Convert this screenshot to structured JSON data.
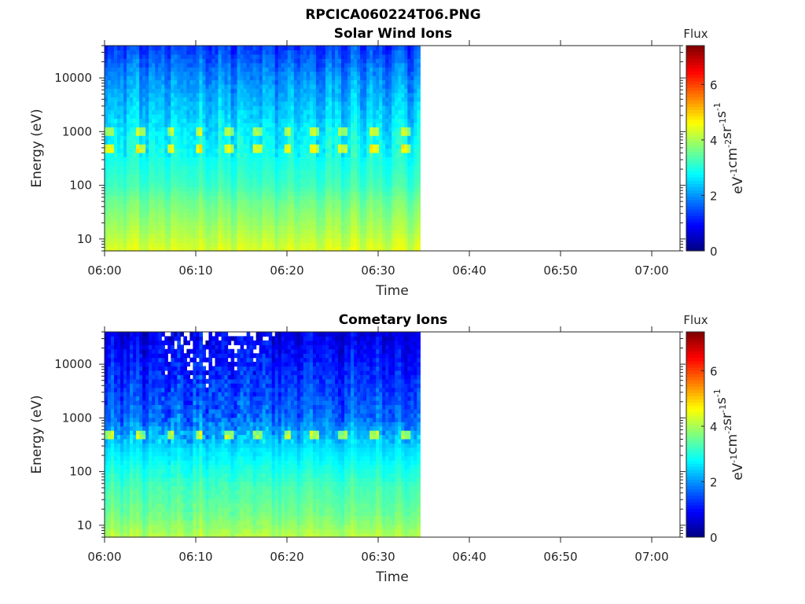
{
  "chart_data": {
    "type": "heatmap",
    "title": "RPCICA060224T06.PNG",
    "colormap": "jet",
    "colorbar": {
      "label_top": "Flux",
      "unit_label": "eV-1cm-2sr-1s-1",
      "range": [
        0,
        7.4
      ],
      "ticks": [
        0,
        2,
        4,
        6
      ]
    },
    "x_axis": {
      "label": "Time",
      "range_minutes": [
        0,
        63.1
      ],
      "tick_minutes": [
        0,
        10,
        20,
        30,
        40,
        50,
        60
      ],
      "tick_labels": [
        "06:00",
        "06:10",
        "06:20",
        "06:30",
        "06:40",
        "06:50",
        "07:00"
      ],
      "data_end_minutes": 34.6,
      "time_bins": 100
    },
    "y_axis": {
      "label": "Energy (eV)",
      "scale": "log",
      "range": [
        6,
        40000
      ],
      "ticks": [
        10,
        100,
        1000,
        10000
      ],
      "tick_labels": [
        "10",
        "100",
        "1000",
        "10000"
      ],
      "energy_bins": 48
    },
    "peak_times_minutes": [
      0.5,
      4.0,
      7.2,
      10.4,
      13.7,
      16.8,
      20.0,
      23.0,
      26.2,
      29.5,
      33.0
    ],
    "panels": [
      {
        "name": "Solar Wind Ions",
        "seed": 7,
        "noise": 0.35,
        "energy_profile": {
          "log_energy": [
            0.78,
            1.2,
            1.7,
            2.0,
            2.5,
            2.75,
            3.0,
            3.2,
            3.5,
            4.0,
            4.6
          ],
          "flux": [
            4.4,
            4.0,
            3.6,
            3.25,
            2.95,
            2.8,
            2.7,
            2.55,
            2.35,
            2.0,
            1.35
          ]
        },
        "peaks": [
          {
            "log_energy": 2.7,
            "boost": 1.6
          },
          {
            "log_energy": 2.98,
            "boost": 1.4
          }
        ],
        "missing_below": -1
      },
      {
        "name": "Cometary Ions",
        "seed": 11,
        "noise": 0.5,
        "energy_profile": {
          "log_energy": [
            0.78,
            1.2,
            1.7,
            2.0,
            2.4,
            2.7,
            3.0,
            3.5,
            4.0,
            4.6
          ],
          "flux": [
            4.1,
            3.6,
            3.3,
            3.0,
            2.6,
            2.2,
            1.7,
            1.4,
            1.1,
            0.7
          ]
        },
        "peaks": [
          {
            "log_energy": 2.72,
            "boost": 1.8
          }
        ],
        "missing_below": 0.25,
        "noisy_interval_minutes": [
          6,
          18
        ]
      }
    ]
  }
}
